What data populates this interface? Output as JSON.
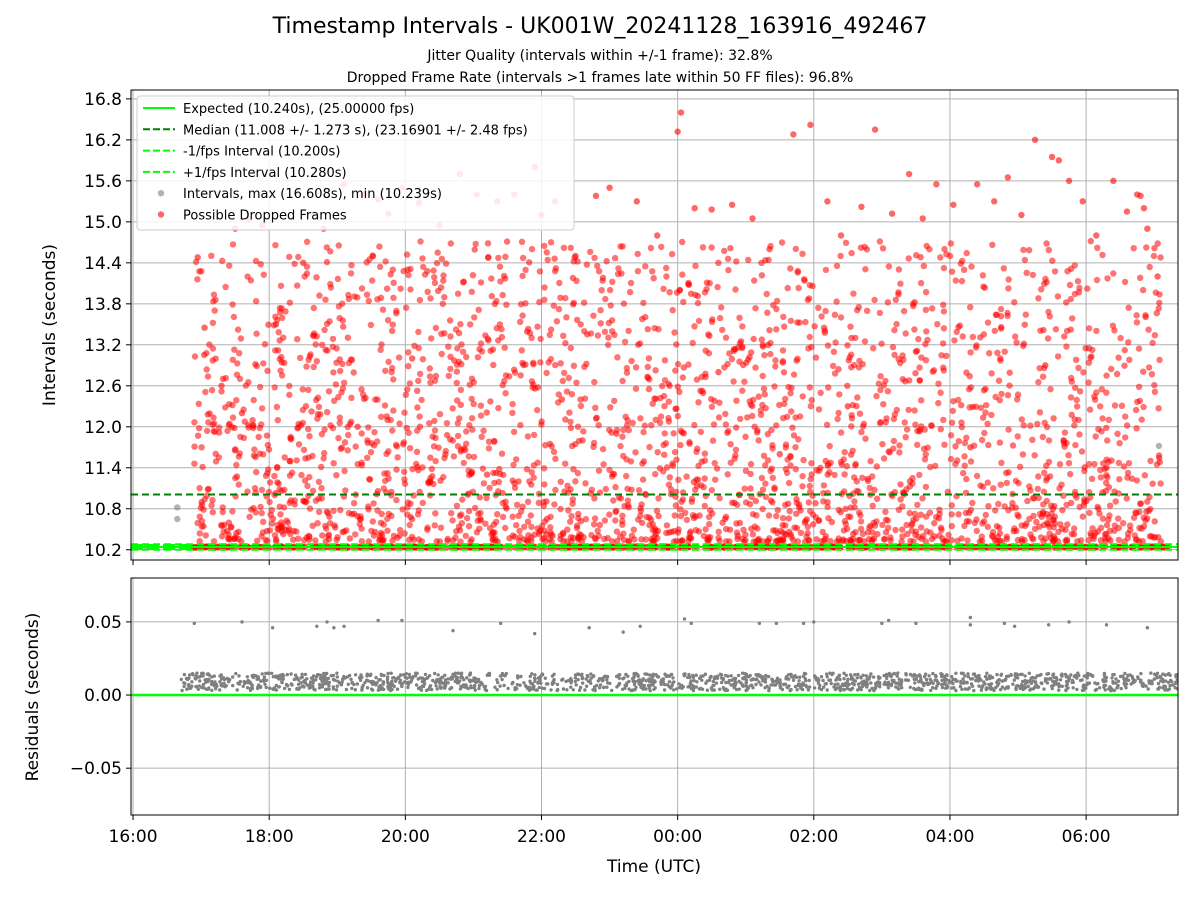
{
  "figure": {
    "title": "Timestamp Intervals - UK001W_20241128_163916_492467",
    "subtitle1": "Jitter Quality (intervals within +/-1 frame): 32.8%",
    "subtitle2": "Dropped Frame Rate (intervals >1 frames late within 50 FF files): 96.8%"
  },
  "colors": {
    "expected": "#00ff00",
    "median": "#008000",
    "dropped": "#ff0000",
    "intervals": "#808080",
    "residuals": "#808080",
    "grid": "#b0b0b0"
  },
  "chart_data": [
    {
      "type": "scatter",
      "ylabel": "Intervals (seconds)",
      "ylim": [
        10.05,
        16.93
      ],
      "yticks": [
        10.2,
        10.8,
        11.4,
        12.0,
        12.6,
        13.2,
        13.8,
        14.4,
        15.0,
        15.6,
        16.2,
        16.8
      ],
      "ytick_labels": [
        "10.2",
        "10.8",
        "11.4",
        "12.0",
        "12.6",
        "13.2",
        "13.8",
        "14.4",
        "15.0",
        "15.6",
        "16.2",
        "16.8"
      ],
      "x_range_hours": [
        15.97,
        31.35
      ],
      "grid": true,
      "legend_position": "upper-left",
      "legend": [
        {
          "label": "Expected (10.240s), (25.00000 fps)",
          "style": "solid-line",
          "color": "#00ff00"
        },
        {
          "label": "Median (11.008 +/- 1.273 s), (23.16901 +/- 2.48 fps)",
          "style": "dashed-line",
          "color": "#008000"
        },
        {
          "label": "-1/fps Interval (10.200s)",
          "style": "dashed-line",
          "color": "#00ff00"
        },
        {
          "label": "+1/fps Interval (10.280s)",
          "style": "dashed-line",
          "color": "#00ff00"
        },
        {
          "label": "Intervals, max (16.608s), min (10.239s)",
          "style": "marker",
          "color": "#808080"
        },
        {
          "label": "Possible Dropped Frames",
          "style": "marker",
          "color": "#ff0000"
        }
      ],
      "reference_lines": {
        "expected": 10.24,
        "median": 11.008,
        "minus_1fps": 10.2,
        "plus_1fps": 10.28
      },
      "series": [
        {
          "name": "Intervals, max (16.608s), min (10.239s)",
          "points": [
            [
              16.65,
              10.82
            ],
            [
              16.65,
              10.65
            ],
            [
              31.07,
              11.72
            ],
            [
              16.2,
              10.24
            ],
            [
              16.5,
              10.24
            ]
          ]
        },
        {
          "name": "Possible Dropped Frames",
          "points": [
            [
              16.95,
              14.48
            ],
            [
              17.05,
              13.45
            ],
            [
              17.3,
              12.6
            ],
            [
              17.5,
              14.9
            ],
            [
              17.7,
              15.04
            ],
            [
              17.9,
              14.95
            ],
            [
              18.1,
              13.5
            ],
            [
              18.5,
              14.4
            ],
            [
              18.8,
              14.9
            ],
            [
              19.1,
              15.55
            ],
            [
              19.4,
              15.4
            ],
            [
              19.6,
              15.33
            ],
            [
              19.75,
              15.12
            ],
            [
              19.95,
              15.5
            ],
            [
              20.2,
              15.28
            ],
            [
              20.5,
              14.95
            ],
            [
              20.8,
              15.7
            ],
            [
              21.05,
              15.4
            ],
            [
              21.35,
              15.3
            ],
            [
              21.6,
              15.4
            ],
            [
              21.9,
              15.8
            ],
            [
              22.0,
              15.1
            ],
            [
              22.2,
              15.3
            ],
            [
              22.5,
              14.5
            ],
            [
              22.8,
              15.38
            ],
            [
              23.0,
              15.5
            ],
            [
              23.4,
              15.3
            ],
            [
              23.7,
              14.8
            ],
            [
              24.0,
              16.32
            ],
            [
              24.05,
              16.6
            ],
            [
              24.25,
              15.2
            ],
            [
              24.5,
              15.18
            ],
            [
              24.8,
              15.25
            ],
            [
              25.1,
              15.05
            ],
            [
              25.35,
              14.6
            ],
            [
              25.7,
              16.28
            ],
            [
              25.95,
              16.42
            ],
            [
              26.2,
              15.3
            ],
            [
              26.4,
              14.8
            ],
            [
              26.7,
              15.22
            ],
            [
              26.9,
              16.35
            ],
            [
              27.15,
              15.12
            ],
            [
              27.4,
              15.7
            ],
            [
              27.6,
              15.05
            ],
            [
              27.8,
              15.55
            ],
            [
              28.05,
              15.25
            ],
            [
              28.4,
              15.55
            ],
            [
              28.65,
              15.3
            ],
            [
              28.85,
              15.65
            ],
            [
              29.05,
              15.1
            ],
            [
              29.25,
              16.2
            ],
            [
              29.5,
              15.95
            ],
            [
              29.6,
              15.9
            ],
            [
              29.75,
              15.6
            ],
            [
              29.95,
              15.3
            ],
            [
              30.15,
              14.8
            ],
            [
              30.4,
              15.6
            ],
            [
              30.6,
              15.15
            ],
            [
              30.75,
              15.4
            ],
            [
              30.8,
              15.38
            ],
            [
              30.85,
              15.2
            ],
            [
              30.9,
              14.9
            ],
            [
              31.05,
              14.2
            ],
            [
              17.6,
              12.2
            ],
            [
              18.3,
              11.5
            ],
            [
              19.3,
              12.0
            ],
            [
              20.1,
              13.0
            ],
            [
              21.2,
              11.3
            ],
            [
              22.3,
              12.4
            ],
            [
              23.1,
              11.9
            ],
            [
              24.6,
              12.8
            ],
            [
              25.5,
              11.6
            ],
            [
              26.5,
              12.3
            ],
            [
              27.5,
              13.1
            ],
            [
              28.3,
              11.7
            ],
            [
              29.4,
              12.9
            ],
            [
              30.3,
              11.4
            ]
          ]
        }
      ]
    },
    {
      "type": "scatter",
      "xlabel": "Time (UTC)",
      "ylabel": "Residuals (seconds)",
      "ylim": [
        -0.082,
        0.08
      ],
      "yticks": [
        -0.05,
        0.0,
        0.05
      ],
      "ytick_labels": [
        "−0.05",
        "0.00",
        "0.05"
      ],
      "x_range_hours": [
        15.97,
        31.35
      ],
      "xticks": [
        16,
        18,
        20,
        22,
        24,
        26,
        28,
        30
      ],
      "xtick_labels": [
        "16:00",
        "18:00",
        "20:00",
        "22:00",
        "00:00",
        "02:00",
        "04:00",
        "06:00"
      ],
      "grid": true,
      "reference_line": 0.0,
      "series": [
        {
          "name": "Residuals",
          "points": [
            [
              16.9,
              0.049
            ],
            [
              17.6,
              0.05
            ],
            [
              18.05,
              0.046
            ],
            [
              18.7,
              0.047
            ],
            [
              18.85,
              0.05
            ],
            [
              18.95,
              0.046
            ],
            [
              19.1,
              0.047
            ],
            [
              19.6,
              0.051
            ],
            [
              19.95,
              0.051
            ],
            [
              20.7,
              0.044
            ],
            [
              21.4,
              0.049
            ],
            [
              21.9,
              0.042
            ],
            [
              22.7,
              0.046
            ],
            [
              23.2,
              0.043
            ],
            [
              23.45,
              0.047
            ],
            [
              24.1,
              0.052
            ],
            [
              24.2,
              0.049
            ],
            [
              25.2,
              0.049
            ],
            [
              25.45,
              0.049
            ],
            [
              25.85,
              0.049
            ],
            [
              26.0,
              0.05
            ],
            [
              27.0,
              0.049
            ],
            [
              27.1,
              0.051
            ],
            [
              27.5,
              0.049
            ],
            [
              28.3,
              0.053
            ],
            [
              28.3,
              0.048
            ],
            [
              28.8,
              0.049
            ],
            [
              28.95,
              0.047
            ],
            [
              29.45,
              0.048
            ],
            [
              29.75,
              0.05
            ],
            [
              30.3,
              0.048
            ],
            [
              30.9,
              0.046
            ]
          ]
        }
      ]
    }
  ]
}
